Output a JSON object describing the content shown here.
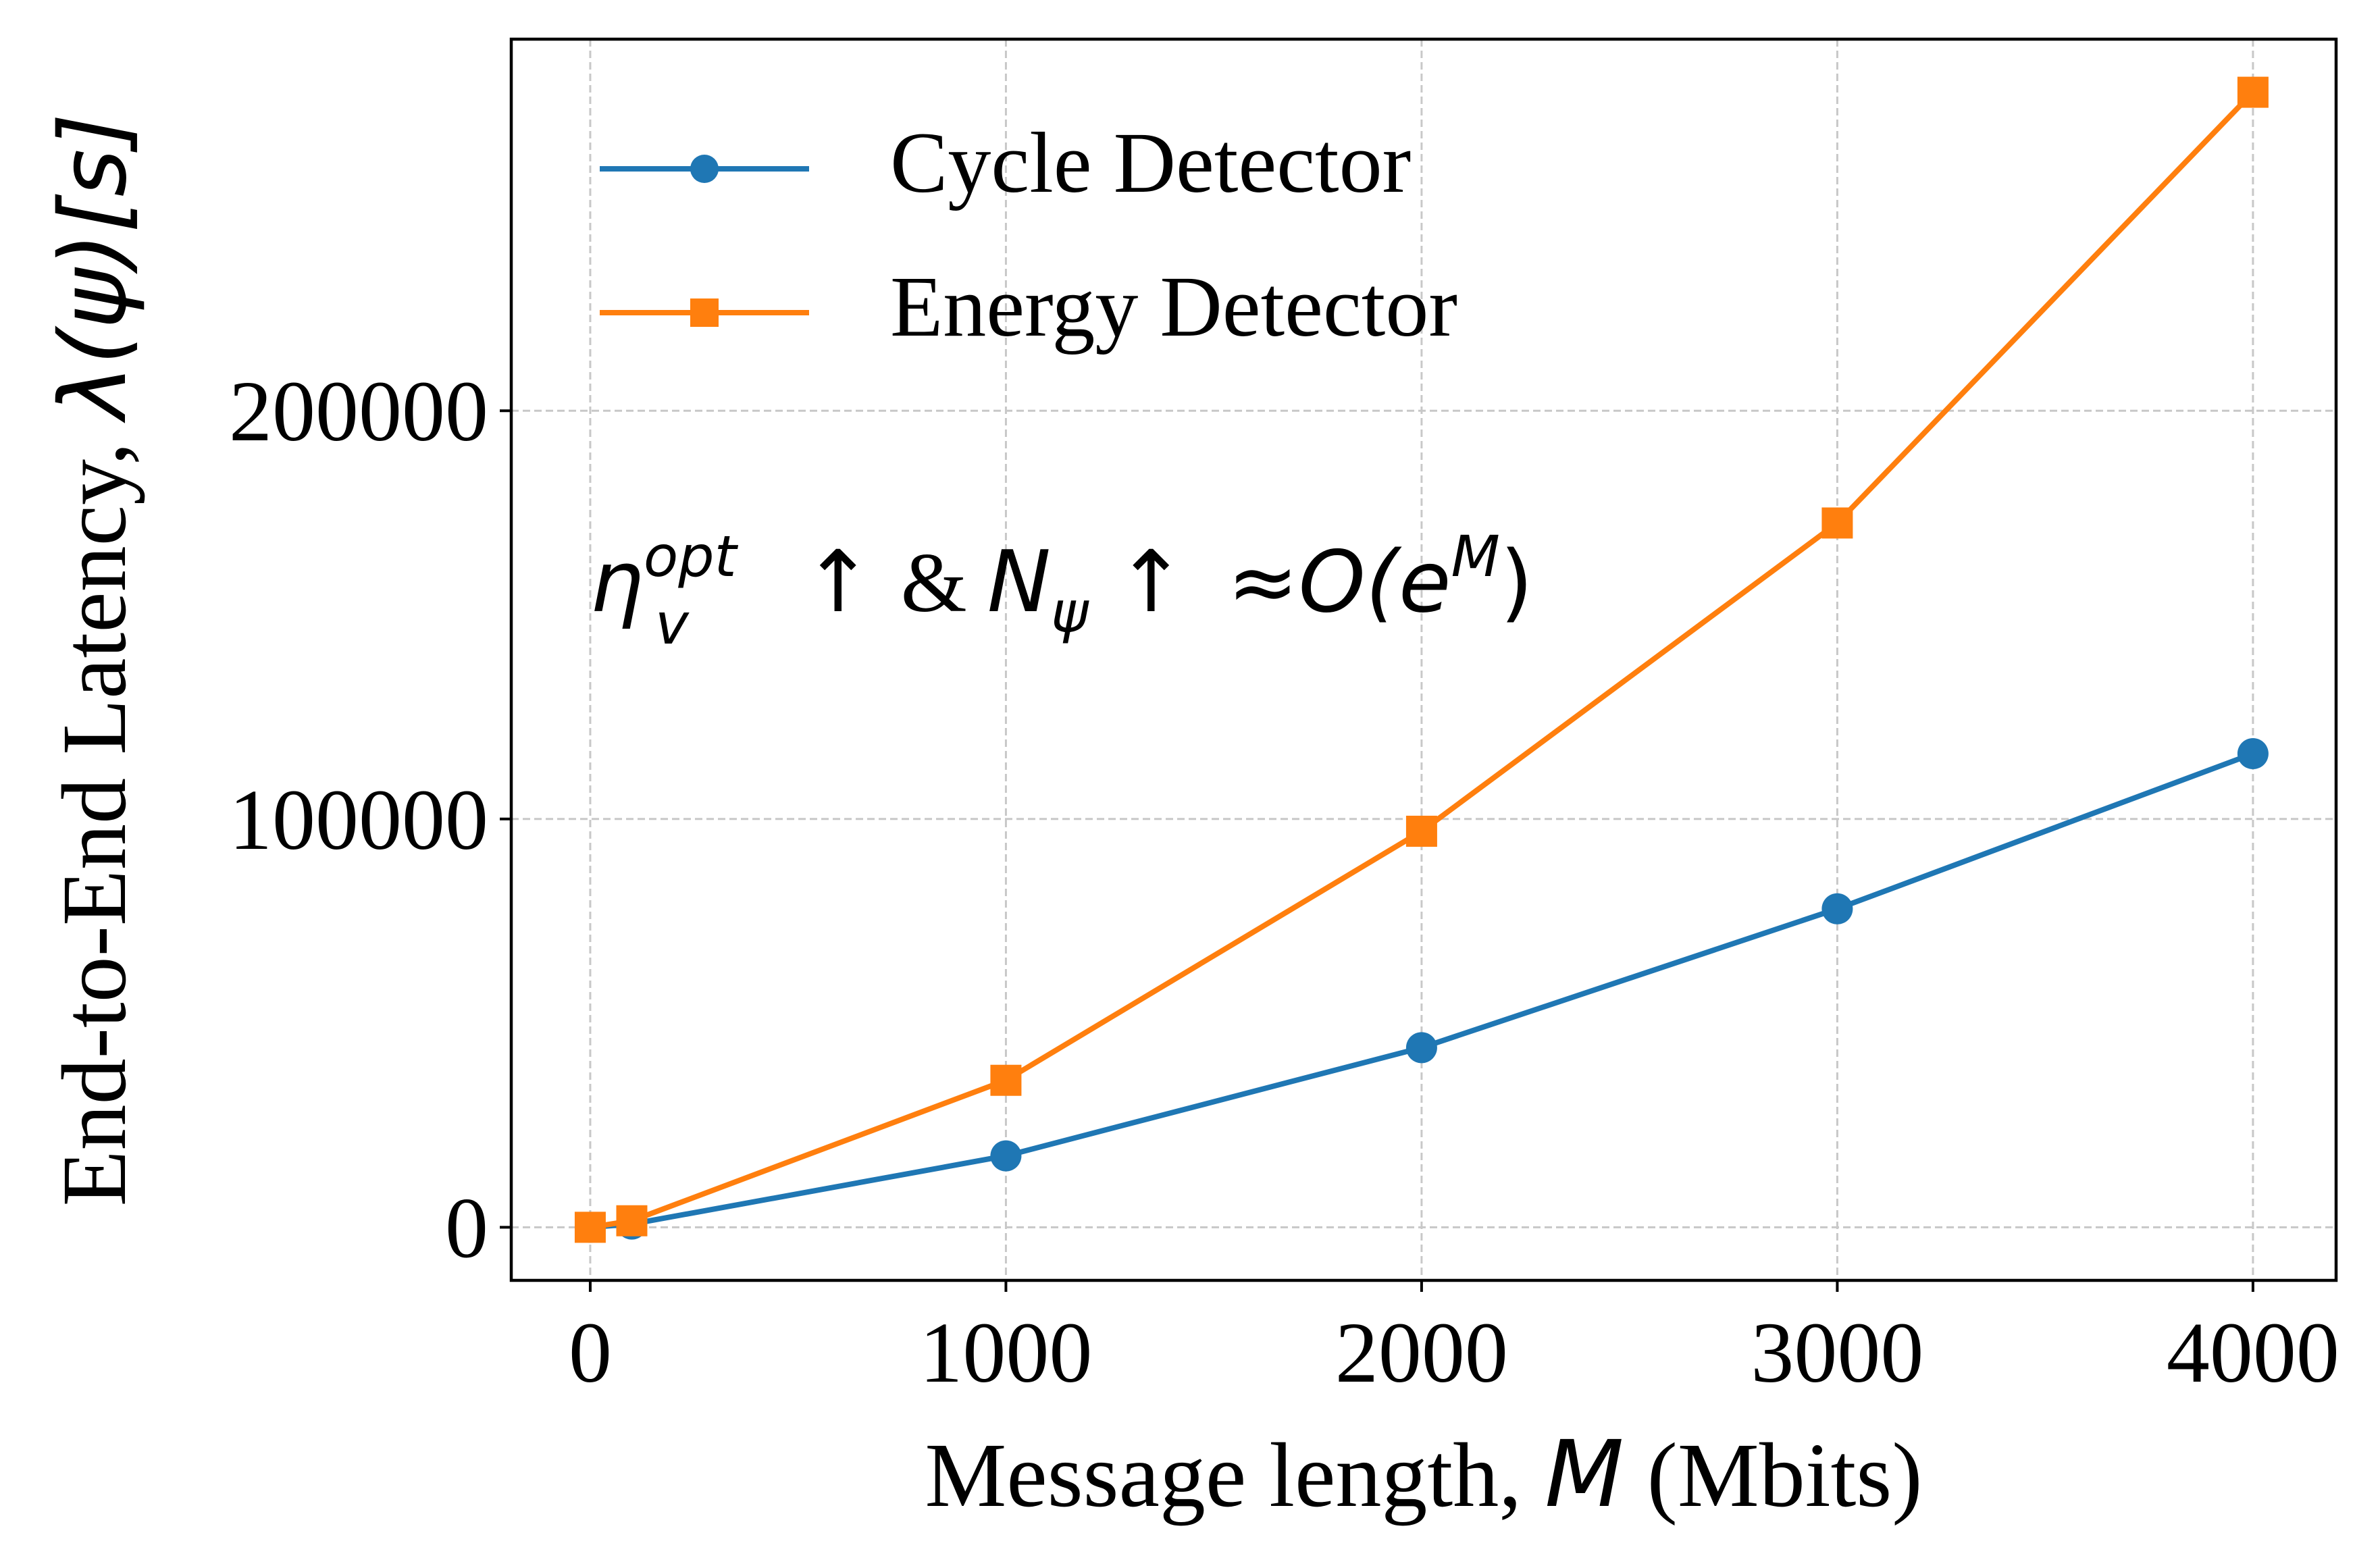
{
  "chart_data": {
    "type": "line",
    "title": "",
    "xlabel_prefix": "Message length, ",
    "xlabel_var": "M",
    "xlabel_suffix": " (Mbits)",
    "ylabel": "End-to-End Latency, λ(ψ)[s]",
    "ylabel_prefix": "End-to-End Latency, ",
    "ylabel_math": "λ(ψ)[s]",
    "xlim": [
      -190,
      4200
    ],
    "ylim": [
      -13000,
      291000
    ],
    "x": [
      0,
      100,
      1000,
      2000,
      3000,
      4000
    ],
    "xticks": [
      0,
      1000,
      2000,
      3000,
      4000
    ],
    "xtick_labels": [
      "0",
      "1000",
      "2000",
      "3000",
      "4000"
    ],
    "yticks": [
      0,
      100000,
      200000
    ],
    "ytick_labels": [
      "0",
      "100000",
      "200000"
    ],
    "grid": true,
    "legend_position": "upper-left",
    "series": [
      {
        "name": "Cycle Detector",
        "color": "#1f77b4",
        "marker": "circle",
        "values": [
          0,
          800,
          17500,
          44000,
          78000,
          116000
        ]
      },
      {
        "name": "Energy Detector",
        "color": "#ff7f0e",
        "marker": "square",
        "values": [
          0,
          1600,
          36000,
          97000,
          172500,
          278000
        ]
      }
    ],
    "annotation": {
      "eta": "η",
      "eta_sup": "opt",
      "eta_sub": "v",
      "up_arrow_1": " ↑ ",
      "amp": "&",
      "n_var": "N",
      "n_sub": "ψ",
      "up_arrow_2": " ↑ ",
      "approx": "≈",
      "order": "O(e",
      "order_sup": "M",
      "close": ")"
    }
  }
}
